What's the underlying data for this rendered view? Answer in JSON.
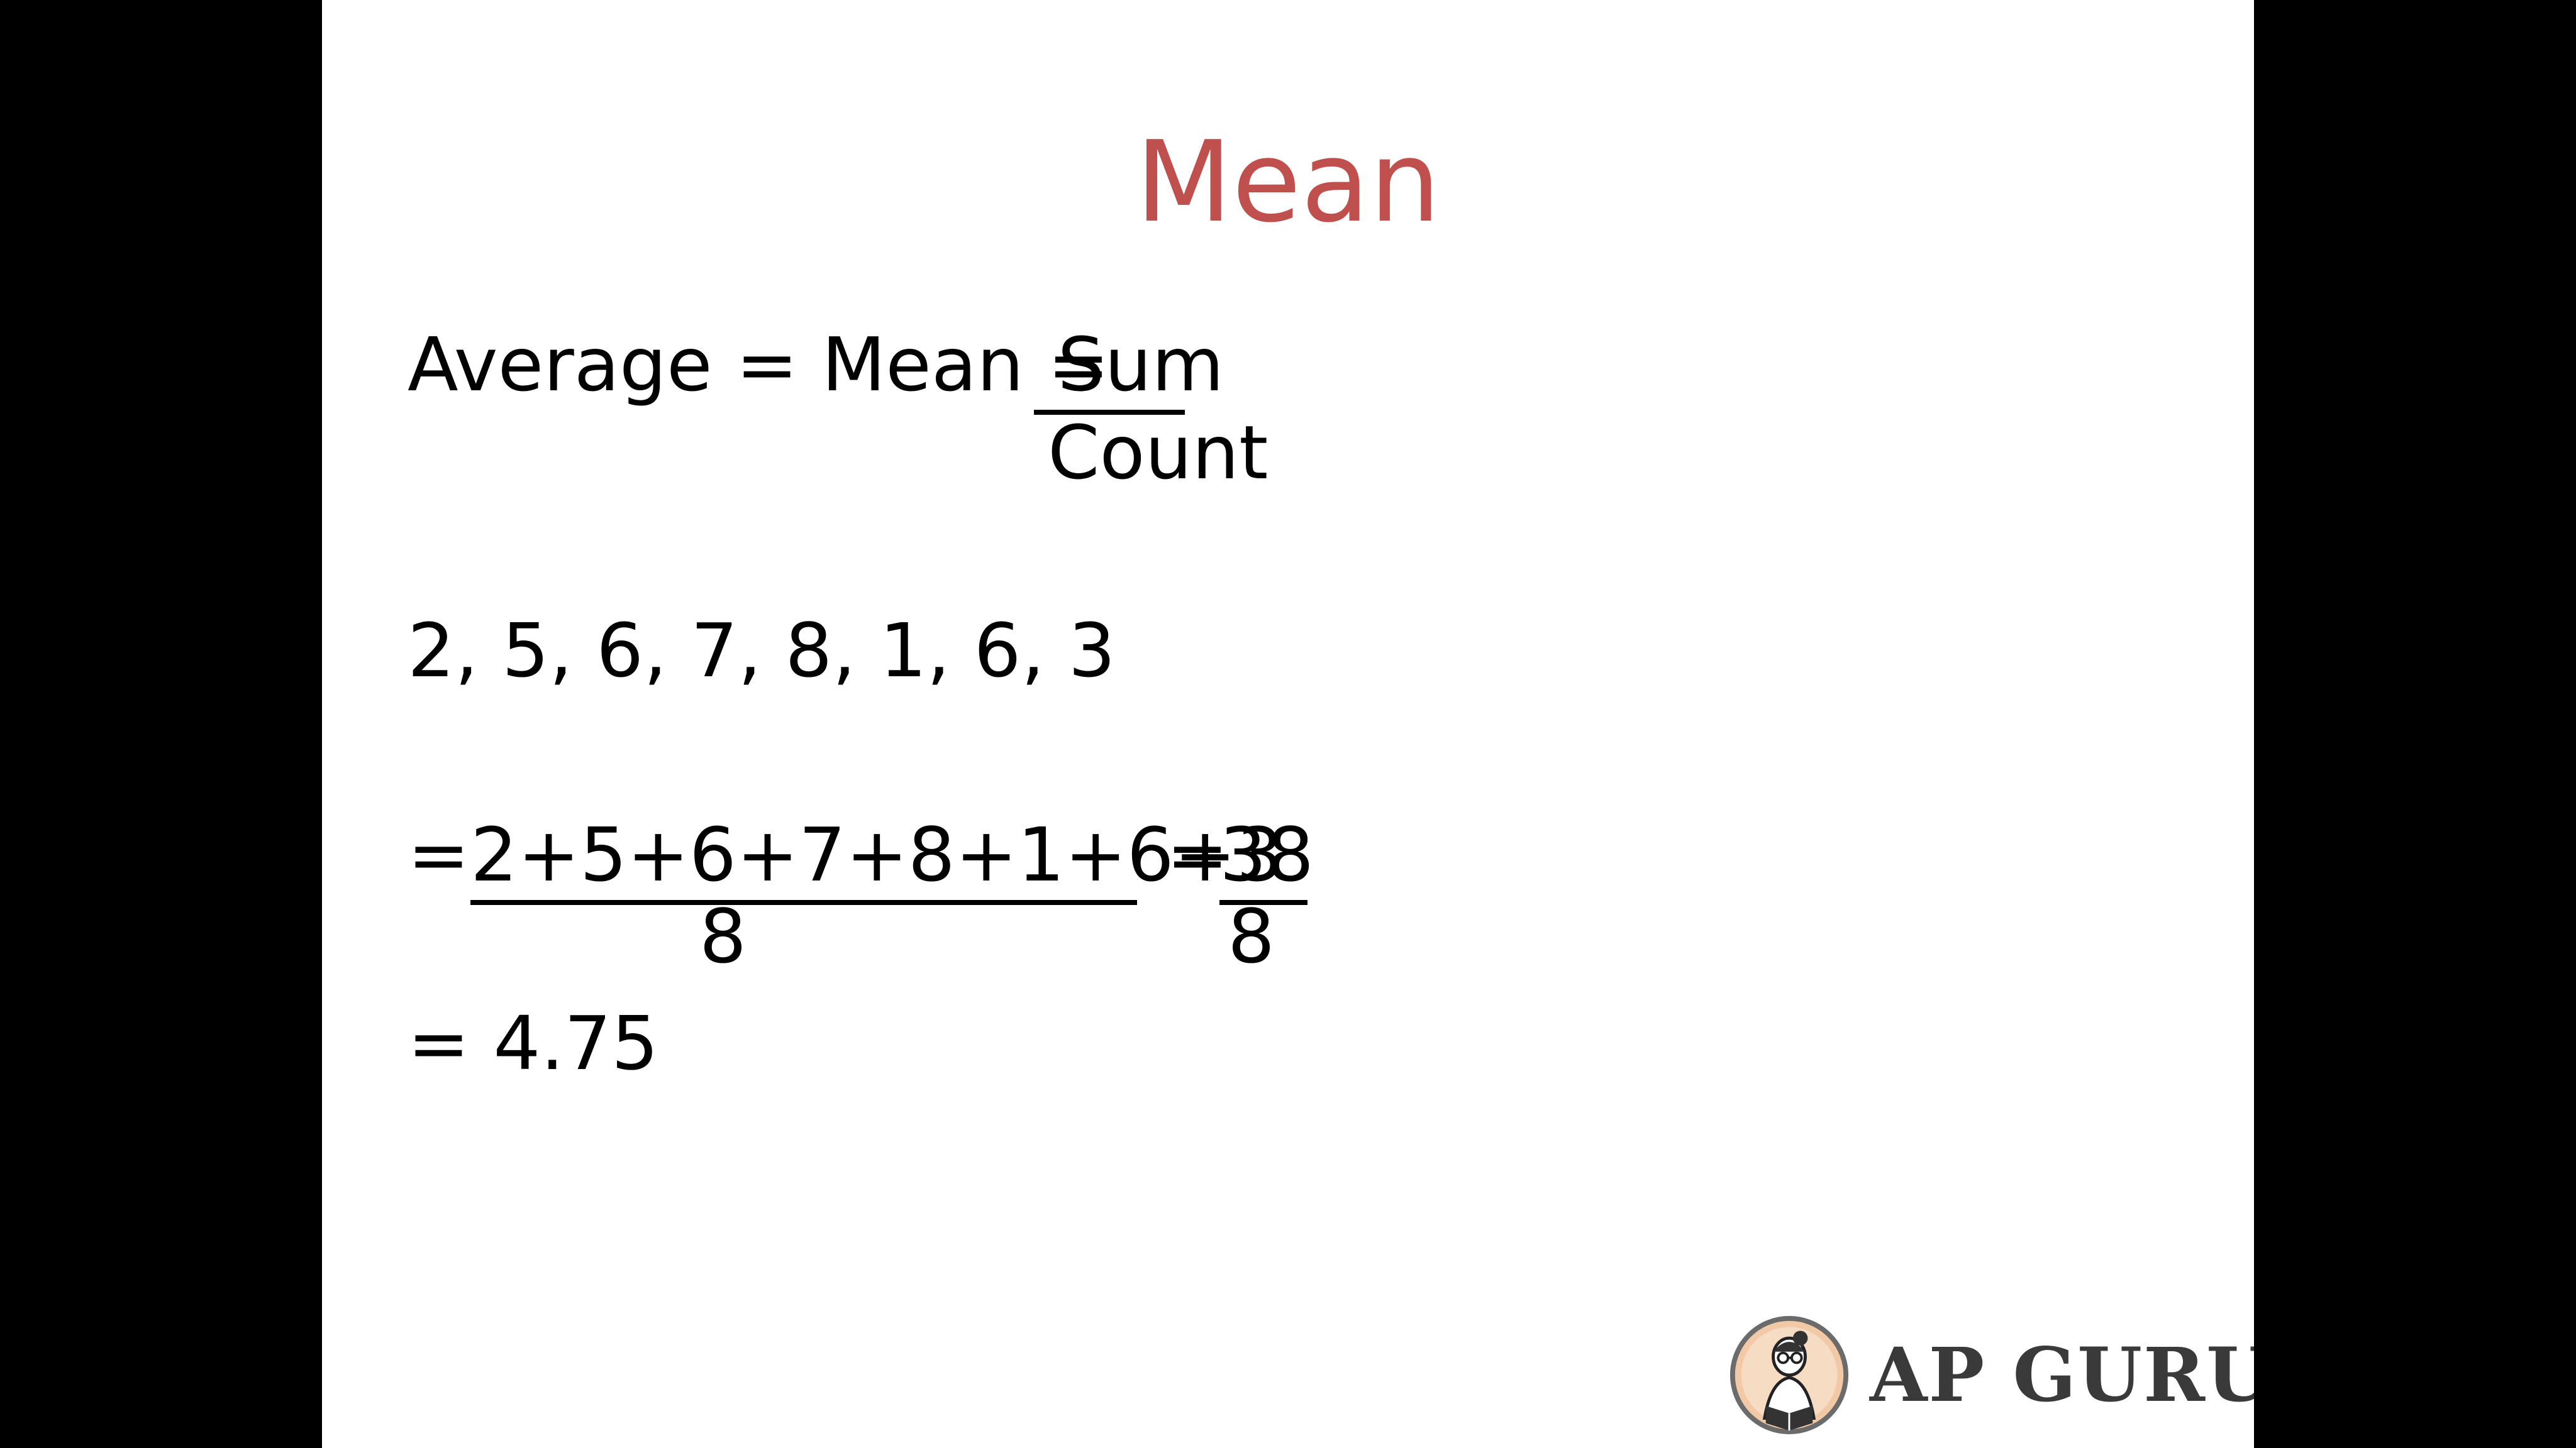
{
  "slide": {
    "title": "Mean",
    "formula": {
      "lhs": "Average = Mean = ",
      "numerator": " Sum",
      "denominator": "Count"
    },
    "data_line": "2, 5, 6, 7, 8, 1, 6, 3",
    "calc": {
      "prefix": "= ",
      "numerator": "2+5+6+7+8+1+6+3 ",
      "denominator": "8",
      "equals": " = ",
      "result_numerator": "38",
      "result_denominator": "8"
    },
    "result_line": "= 4.75"
  },
  "logo": {
    "text": "AP GURU",
    "icon": "reading-person-icon",
    "badge_color": "#f2c9a6"
  }
}
